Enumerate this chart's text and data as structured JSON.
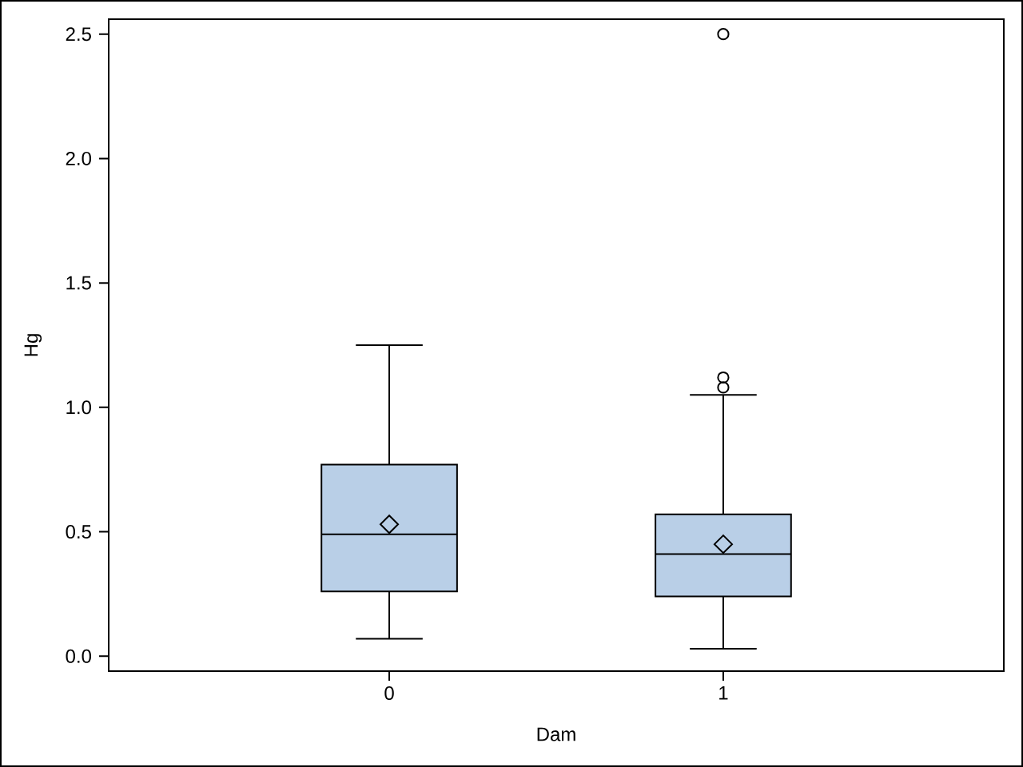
{
  "chart_data": {
    "type": "box",
    "xlabel": "Dam",
    "ylabel": "Hg",
    "categories": [
      "0",
      "1"
    ],
    "color": "#b9cfe7",
    "boxes": [
      {
        "low": 0.07,
        "q1": 0.26,
        "median": 0.49,
        "q3": 0.77,
        "high": 1.25,
        "mean": 0.53
      },
      {
        "low": 0.03,
        "q1": 0.24,
        "median": 0.41,
        "q3": 0.57,
        "high": 1.05,
        "mean": 0.45,
        "outliers": [
          2.5,
          1.12,
          1.08
        ]
      }
    ],
    "ylim": [
      -0.06,
      2.56
    ],
    "yticks": [
      {
        "value": 0,
        "label": "0.0"
      },
      0.5,
      {
        "value": 1,
        "label": "1.0"
      },
      1.5,
      {
        "value": 2,
        "label": "2.0"
      },
      2.5
    ]
  }
}
